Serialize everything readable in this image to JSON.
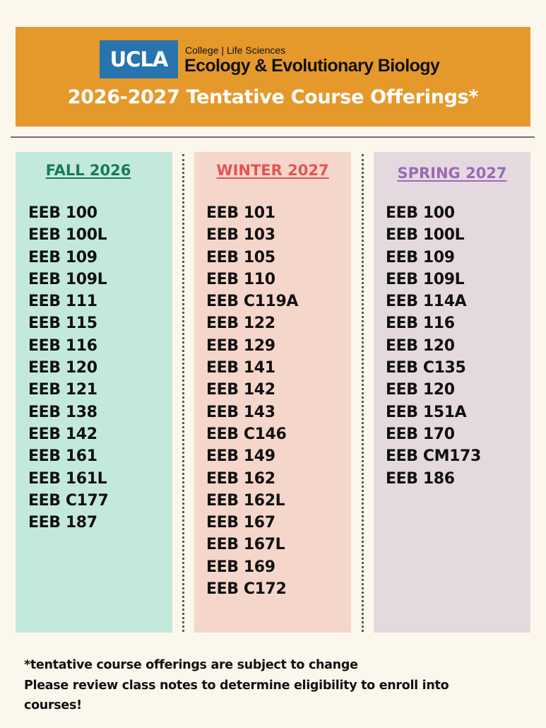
{
  "header": {
    "logo_text": "UCLA",
    "college_line": "College | Life Sciences",
    "department": "Ecology & Evolutionary Biology",
    "title": "2026-2027 Tentative Course Offerings*",
    "background_color": "#e6992b",
    "logo_color": "#2774ae"
  },
  "columns": [
    {
      "heading": "FALL 2026",
      "heading_color": "#177a57",
      "background_color": "#c3e9dc",
      "courses": [
        "EEB 100",
        "EEB 100L",
        "EEB 109",
        "EEB 109L",
        "EEB 111",
        "EEB 115",
        "EEB 116",
        "EEB 120",
        "EEB 121",
        "EEB 138",
        "EEB 142",
        "EEB 161",
        "EEB 161L",
        "EEB C177",
        "EEB 187"
      ]
    },
    {
      "heading": "WINTER 2027",
      "heading_color": "#e45454",
      "background_color": "#f5d6cb",
      "courses": [
        "EEB 101",
        "EEB 103",
        "EEB 105",
        "EEB 110",
        "EEB C119A",
        "EEB 122",
        "EEB 129",
        "EEB 141",
        "EEB 142",
        "EEB 143",
        "EEB C146",
        "EEB 149",
        "EEB 162",
        "EEB 162L",
        "EEB 167",
        "EEB 167L",
        "EEB 169",
        "EEB C172"
      ]
    },
    {
      "heading": "SPRING 2027",
      "heading_color": "#9b6ab6",
      "background_color": "#e5d9e0",
      "courses": [
        "EEB 100",
        "EEB 100L",
        "EEB 109",
        "EEB 109L",
        "EEB 114A",
        "EEB 116",
        "EEB 120",
        "EEB C135",
        "EEB 120",
        "EEB 151A",
        "EEB 170",
        "EEB CM173",
        "EEB 186"
      ]
    }
  ],
  "footnote": {
    "line1": "*tentative course offerings are subject to change",
    "line2": "Please review class notes to determine eligibility to enroll into",
    "line3": "courses!"
  }
}
